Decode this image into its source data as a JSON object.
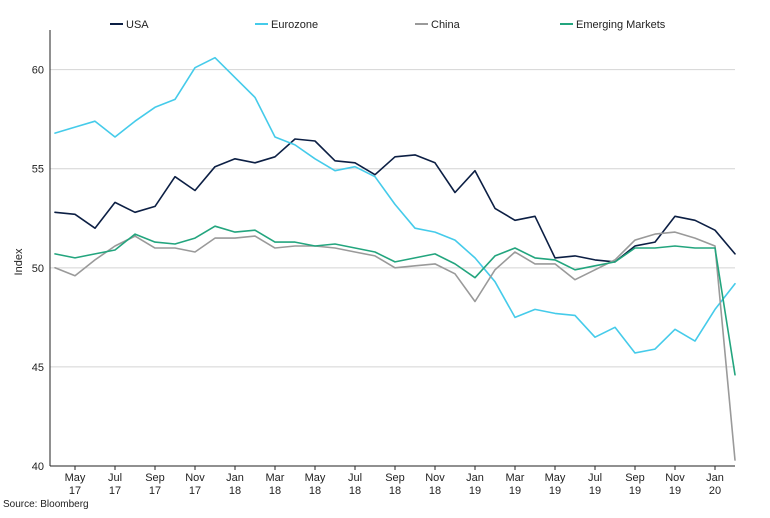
{
  "chart_data": {
    "type": "line",
    "title": "",
    "xlabel": "",
    "ylabel": "Index",
    "ylim": [
      40,
      62
    ],
    "yticks": [
      40,
      45,
      50,
      55,
      60
    ],
    "grid": true,
    "legend_position": "top",
    "x": [
      "Apr 17",
      "May 17",
      "Jun 17",
      "Jul 17",
      "Aug 17",
      "Sep 17",
      "Oct 17",
      "Nov 17",
      "Dec 17",
      "Jan 18",
      "Feb 18",
      "Mar 18",
      "Apr 18",
      "May 18",
      "Jun 18",
      "Jul 18",
      "Aug 18",
      "Sep 18",
      "Oct 18",
      "Nov 18",
      "Dec 18",
      "Jan 19",
      "Feb 19",
      "Mar 19",
      "Apr 19",
      "May 19",
      "Jun 19",
      "Jul 19",
      "Aug 19",
      "Sep 19",
      "Oct 19",
      "Nov 19",
      "Dec 19",
      "Jan 20",
      "Feb 20"
    ],
    "tick_labels": [
      {
        "index": 1,
        "line1": "May",
        "line2": "17"
      },
      {
        "index": 3,
        "line1": "Jul",
        "line2": "17"
      },
      {
        "index": 5,
        "line1": "Sep",
        "line2": "17"
      },
      {
        "index": 7,
        "line1": "Nov",
        "line2": "17"
      },
      {
        "index": 9,
        "line1": "Jan",
        "line2": "18"
      },
      {
        "index": 11,
        "line1": "Mar",
        "line2": "18"
      },
      {
        "index": 13,
        "line1": "May",
        "line2": "18"
      },
      {
        "index": 15,
        "line1": "Jul",
        "line2": "18"
      },
      {
        "index": 17,
        "line1": "Sep",
        "line2": "18"
      },
      {
        "index": 19,
        "line1": "Nov",
        "line2": "18"
      },
      {
        "index": 21,
        "line1": "Jan",
        "line2": "19"
      },
      {
        "index": 23,
        "line1": "Mar",
        "line2": "19"
      },
      {
        "index": 25,
        "line1": "May",
        "line2": "19"
      },
      {
        "index": 27,
        "line1": "Jul",
        "line2": "19"
      },
      {
        "index": 29,
        "line1": "Sep",
        "line2": "19"
      },
      {
        "index": 31,
        "line1": "Nov",
        "line2": "19"
      },
      {
        "index": 33,
        "line1": "Jan",
        "line2": "20"
      }
    ],
    "series": [
      {
        "name": "USA",
        "color": "#0c1f44",
        "values": [
          52.8,
          52.7,
          52.0,
          53.3,
          52.8,
          53.1,
          54.6,
          53.9,
          55.1,
          55.5,
          55.3,
          55.6,
          56.5,
          56.4,
          55.4,
          55.3,
          54.7,
          55.6,
          55.7,
          55.3,
          53.8,
          54.9,
          53.0,
          52.4,
          52.6,
          50.5,
          50.6,
          50.4,
          50.3,
          51.1,
          51.3,
          52.6,
          52.4,
          51.9,
          50.7
        ]
      },
      {
        "name": "Eurozone",
        "color": "#45cbea",
        "values": [
          56.8,
          57.1,
          57.4,
          56.6,
          57.4,
          58.1,
          58.5,
          60.1,
          60.6,
          59.6,
          58.6,
          56.6,
          56.2,
          55.5,
          54.9,
          55.1,
          54.6,
          53.2,
          52.0,
          51.8,
          51.4,
          50.5,
          49.3,
          47.5,
          47.9,
          47.7,
          47.6,
          46.5,
          47.0,
          45.7,
          45.9,
          46.9,
          46.3,
          47.9,
          49.2
        ]
      },
      {
        "name": "China",
        "color": "#9a9a9a",
        "values": [
          50.0,
          49.6,
          50.4,
          51.1,
          51.6,
          51.0,
          51.0,
          50.8,
          51.5,
          51.5,
          51.6,
          51.0,
          51.1,
          51.1,
          51.0,
          50.8,
          50.6,
          50.0,
          50.1,
          50.2,
          49.7,
          48.3,
          49.9,
          50.8,
          50.2,
          50.2,
          49.4,
          49.9,
          50.4,
          51.4,
          51.7,
          51.8,
          51.5,
          51.1,
          40.3
        ]
      },
      {
        "name": "Emerging Markets",
        "color": "#23a57e",
        "values": [
          50.7,
          50.5,
          50.7,
          50.9,
          51.7,
          51.3,
          51.2,
          51.5,
          52.1,
          51.8,
          51.9,
          51.3,
          51.3,
          51.1,
          51.2,
          51.0,
          50.8,
          50.3,
          50.5,
          50.7,
          50.2,
          49.5,
          50.6,
          51.0,
          50.5,
          50.4,
          49.9,
          50.1,
          50.3,
          51.0,
          51.0,
          51.1,
          51.0,
          51.0,
          44.6
        ]
      }
    ]
  },
  "footer": {
    "source": "Source: Bloomberg"
  }
}
